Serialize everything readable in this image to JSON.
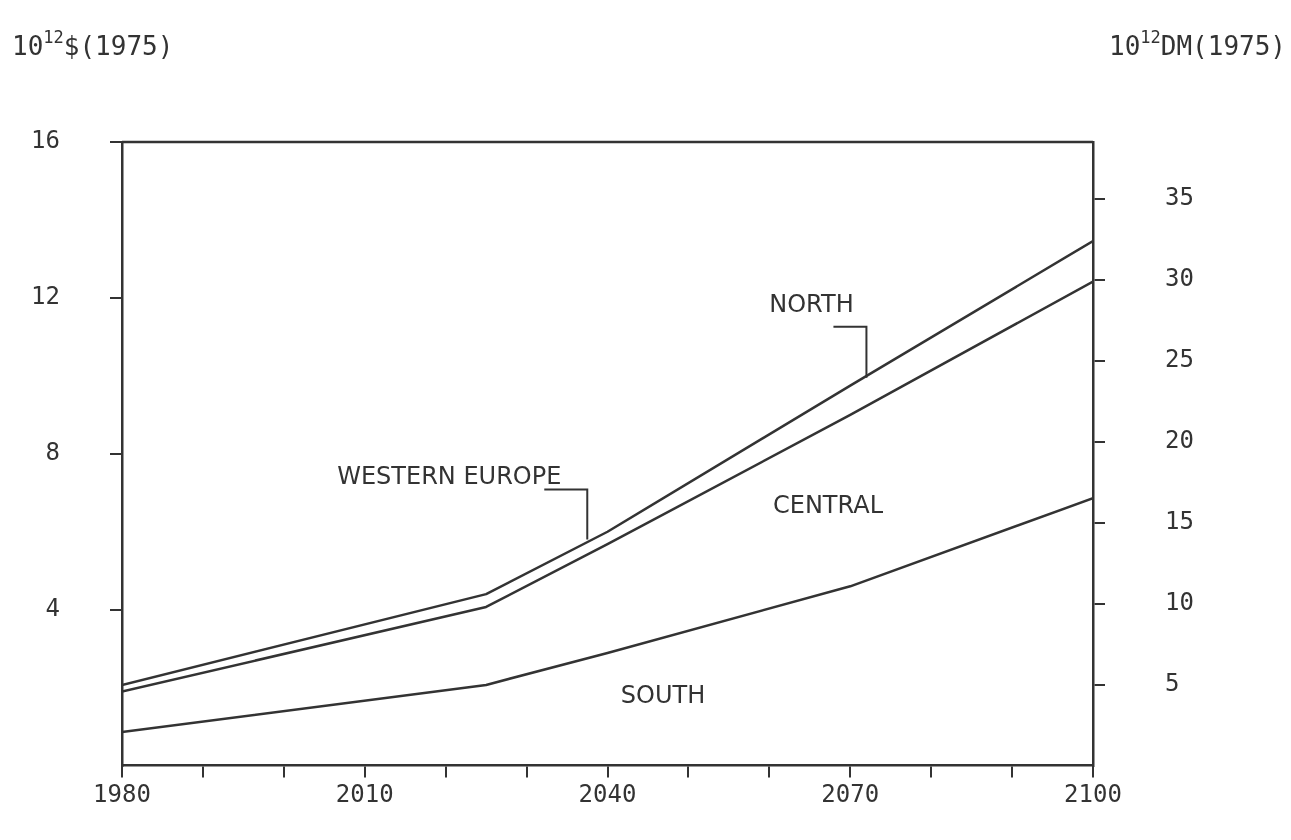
{
  "chart_data": {
    "type": "line",
    "ylabel": "10$^{12}$$(1975)",
    "y2label": "10$^{12}$DM(1975)",
    "x": [
      1980,
      2025,
      2040,
      2070,
      2100
    ],
    "series": [
      {
        "color": "#333333",
        "values": [
          0.86,
          2.07,
          2.89,
          4.6,
          6.86
        ]
      },
      {
        "color": "#333333",
        "values": [
          1.9,
          4.07,
          5.68,
          9.0,
          12.42
        ]
      },
      {
        "color": "#333333",
        "values": [
          2.07,
          4.4,
          6.0,
          9.75,
          13.46
        ]
      }
    ],
    "xlim": [
      1980,
      2100
    ],
    "xticks": [
      1980,
      {
        "value": 1990,
        "label": null
      },
      {
        "value": 2000,
        "label": null
      },
      2010,
      {
        "value": 2020,
        "label": null
      },
      {
        "value": 2030,
        "label": null
      },
      2040,
      {
        "value": 2050,
        "label": null
      },
      {
        "value": 2060,
        "label": null
      },
      2070,
      {
        "value": 2080,
        "label": null
      },
      {
        "value": 2090,
        "label": null
      },
      2100
    ],
    "ylim": [
      0,
      16
    ],
    "yticks": [
      4,
      8,
      12,
      16
    ],
    "y2lim": [
      0,
      38.5
    ],
    "y2ticks": [
      5,
      10,
      15,
      20,
      25,
      30,
      35
    ],
    "grid": false,
    "legend": false,
    "marker": "none",
    "line_style": "solid",
    "annotations": [
      "SOUTH",
      "CENTRAL",
      {
        "text": "WESTERN EUROPE",
        "x": 2037.5,
        "y": 5.8
      },
      {
        "text": "NORTH",
        "x": 2072,
        "y": 9.95
      }
    ]
  }
}
